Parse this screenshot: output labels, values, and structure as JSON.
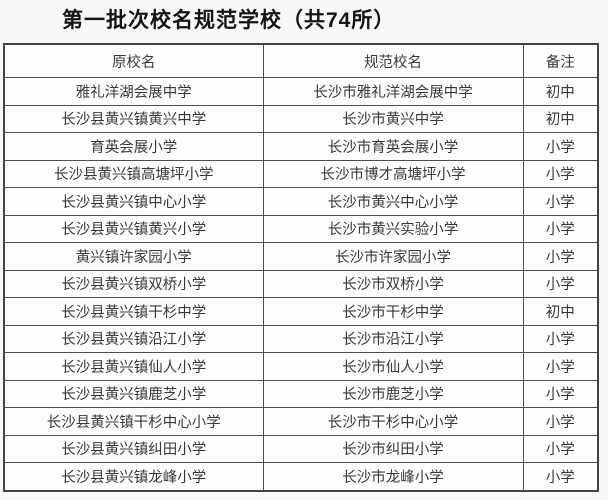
{
  "page": {
    "title": "第一批次校名规范学校（共74所）"
  },
  "table": {
    "headers": [
      "原校名",
      "规范校名",
      "备注"
    ],
    "rows": [
      {
        "original": "雅礼洋湖会展中学",
        "standardized": "长沙市雅礼洋湖会展中学",
        "note": "初中"
      },
      {
        "original": "长沙县黄兴镇黄兴中学",
        "standardized": "长沙市黄兴中学",
        "note": "初中"
      },
      {
        "original": "育英会展小学",
        "standardized": "长沙市育英会展小学",
        "note": "小学"
      },
      {
        "original": "长沙县黄兴镇高塘坪小学",
        "standardized": "长沙市博才高塘坪小学",
        "note": "小学"
      },
      {
        "original": "长沙县黄兴镇中心小学",
        "standardized": "长沙市黄兴中心小学",
        "note": "小学"
      },
      {
        "original": "长沙县黄兴镇黄兴小学",
        "standardized": "长沙市黄兴实验小学",
        "note": "小学"
      },
      {
        "original": "黄兴镇许家园小学",
        "standardized": "长沙市许家园小学",
        "note": "小学"
      },
      {
        "original": "长沙县黄兴镇双桥小学",
        "standardized": "长沙市双桥小学",
        "note": "小学"
      },
      {
        "original": "长沙县黄兴镇干杉中学",
        "standardized": "长沙市干杉中学",
        "note": "初中"
      },
      {
        "original": "长沙县黄兴镇沿江小学",
        "standardized": "长沙市沿江小学",
        "note": "小学"
      },
      {
        "original": "长沙县黄兴镇仙人小学",
        "standardized": "长沙市仙人小学",
        "note": "小学"
      },
      {
        "original": "长沙县黄兴镇鹿芝小学",
        "standardized": "长沙市鹿芝小学",
        "note": "小学"
      },
      {
        "original": "长沙县黄兴镇干杉中心小学",
        "standardized": "长沙市干杉中心小学",
        "note": "小学"
      },
      {
        "original": "长沙县黄兴镇纠田小学",
        "standardized": "长沙市纠田小学",
        "note": "小学"
      },
      {
        "original": "长沙县黄兴镇龙峰小学",
        "standardized": "长沙市龙峰小学",
        "note": "小学"
      }
    ]
  },
  "colors": {
    "background": "#f8f8f6",
    "table_border": "#4e4e4e",
    "title_text": "#141414",
    "cell_text": "#383838",
    "cell_background": "#fdfdfc"
  }
}
